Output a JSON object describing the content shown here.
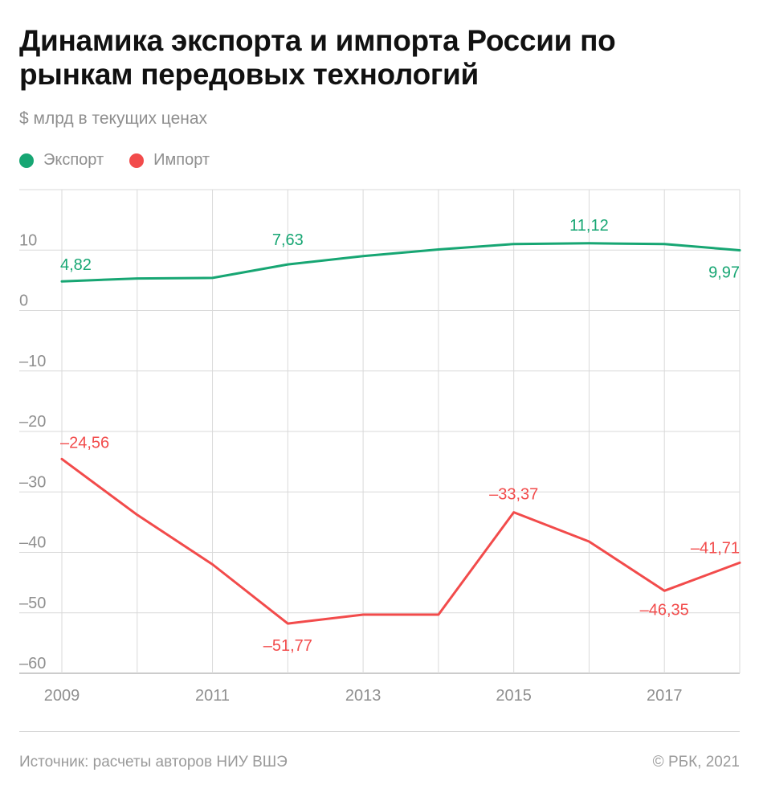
{
  "header": {
    "title": "Динамика экспорта и импорта России по рынкам передовых технологий",
    "subtitle": "$ млрд в текущих ценах"
  },
  "legend": {
    "export_label": "Экспорт",
    "import_label": "Импорт"
  },
  "footer": {
    "source": "Источник: расчеты авторов НИУ ВШЭ",
    "copyright": "© РБК, 2021"
  },
  "colors": {
    "export": "#17a673",
    "import": "#f24b4b",
    "grid": "#d9d9d9",
    "axis_text": "#8f8f8f"
  },
  "chart_data": {
    "type": "line",
    "x": [
      2009,
      2010,
      2011,
      2012,
      2013,
      2014,
      2015,
      2016,
      2017,
      2018
    ],
    "x_tick_labels": [
      "2009",
      "2011",
      "2013",
      "2015",
      "2017"
    ],
    "y_tick_labels": [
      "10",
      "0",
      "–10",
      "–20",
      "–30",
      "–40",
      "–50",
      "–60"
    ],
    "ylim": [
      -60,
      20
    ],
    "grid": true,
    "legend_position": "top-left",
    "series": [
      {
        "name": "Экспорт",
        "key": "export",
        "values": [
          4.82,
          5.3,
          5.4,
          7.63,
          9.0,
          10.1,
          11.0,
          11.12,
          11.0,
          9.97
        ],
        "labels": [
          {
            "index": 0,
            "text": "4,82"
          },
          {
            "index": 3,
            "text": "7,63"
          },
          {
            "index": 7,
            "text": "11,12"
          },
          {
            "index": 9,
            "text": "9,97"
          }
        ]
      },
      {
        "name": "Импорт",
        "key": "import",
        "values": [
          -24.56,
          -33.8,
          -42.0,
          -51.77,
          -50.3,
          -50.3,
          -33.37,
          -38.2,
          -46.35,
          -41.71
        ],
        "labels": [
          {
            "index": 0,
            "text": "–24,56"
          },
          {
            "index": 3,
            "text": "–51,77"
          },
          {
            "index": 6,
            "text": "–33,37"
          },
          {
            "index": 8,
            "text": "–46,35"
          },
          {
            "index": 9,
            "text": "–41,71"
          }
        ]
      }
    ]
  }
}
